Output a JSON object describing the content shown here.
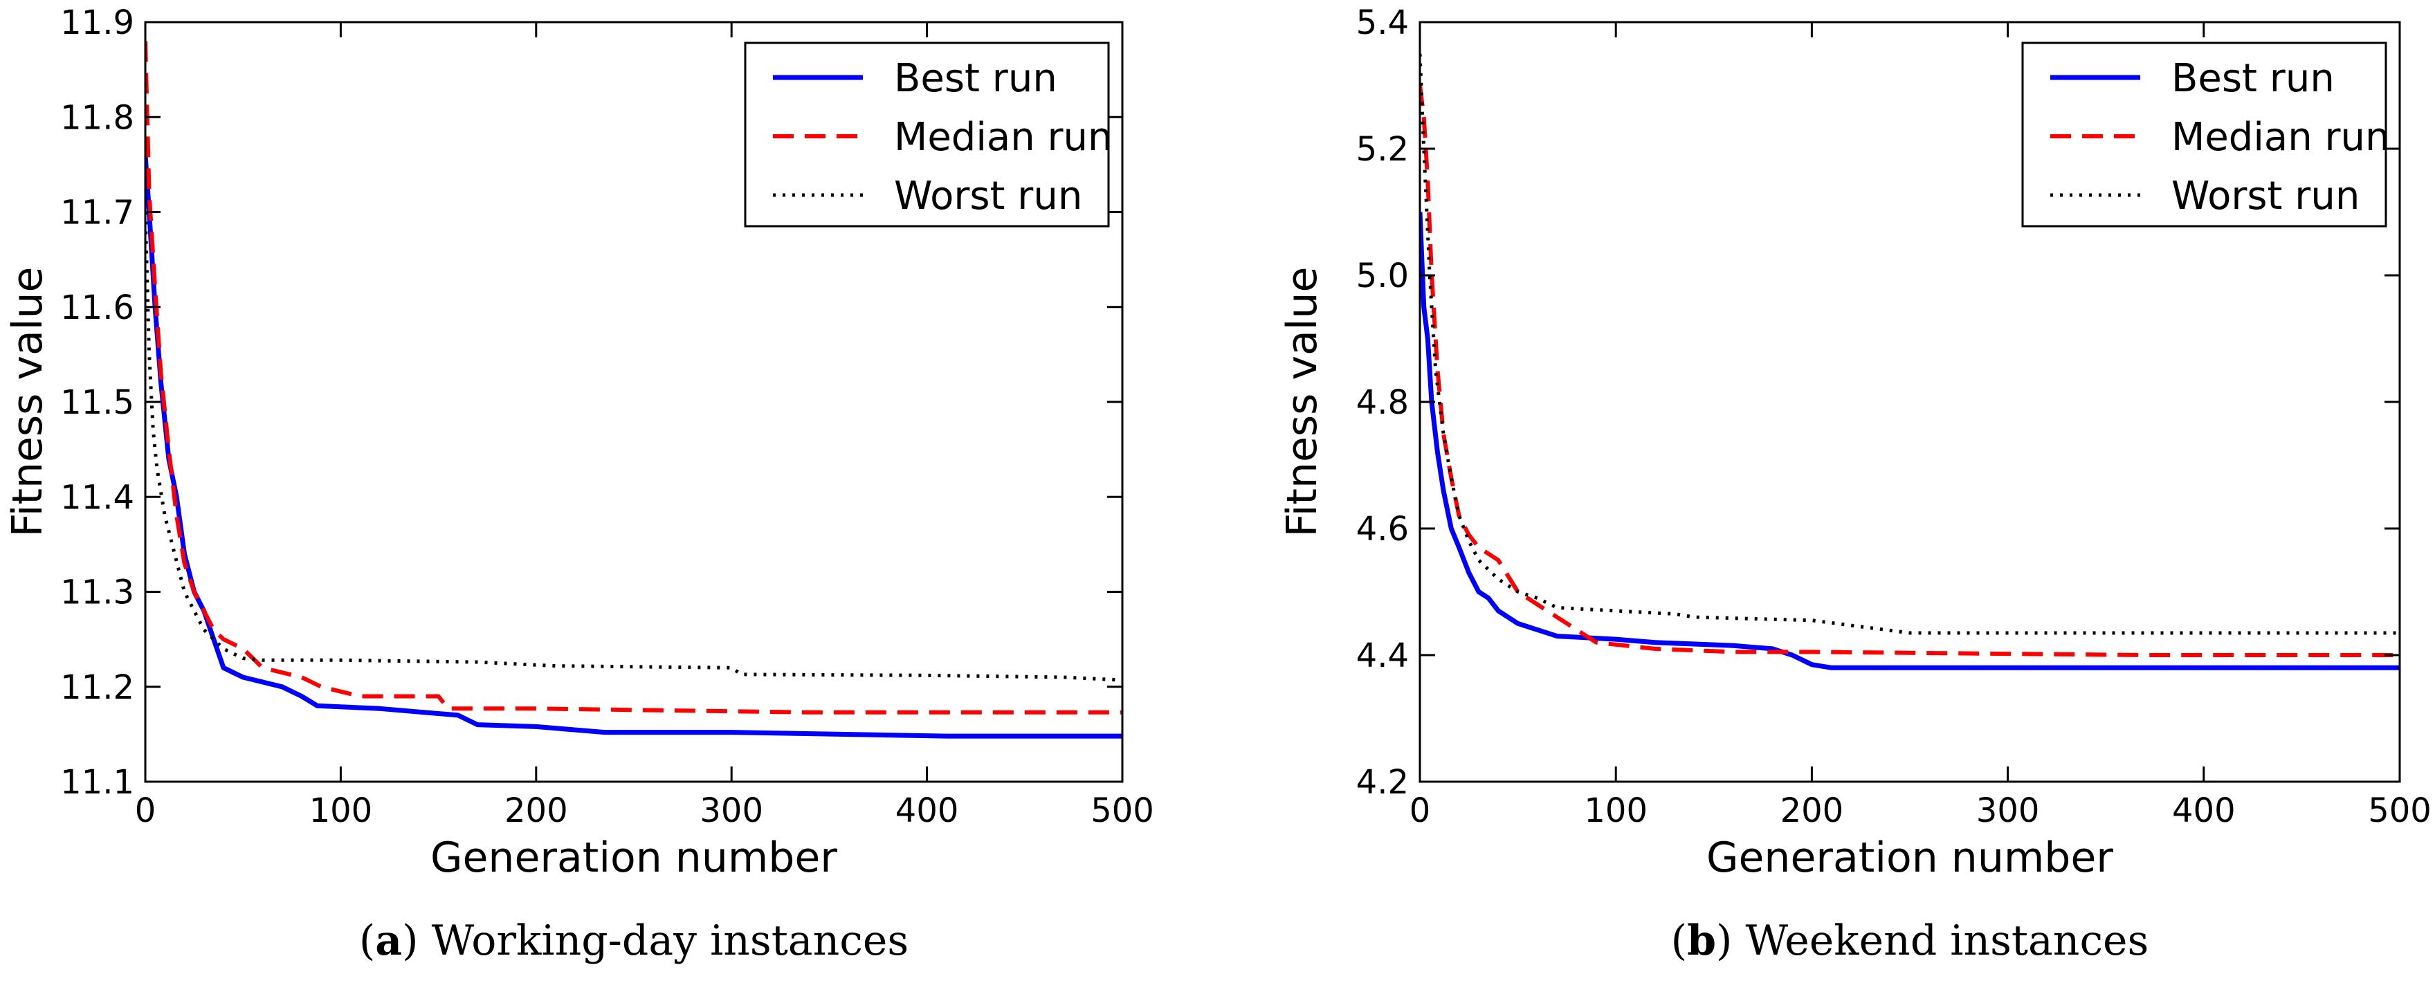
{
  "chart_data": [
    {
      "id": "a",
      "type": "line",
      "caption_letter": "a",
      "caption_text": "Working-day instances",
      "xlabel": "Generation number",
      "ylabel": "Fitness value",
      "xlim": [
        0,
        500
      ],
      "ylim": [
        11.1,
        11.9
      ],
      "xticks": [
        0,
        100,
        200,
        300,
        400,
        500
      ],
      "yticks": [
        11.1,
        11.2,
        11.3,
        11.4,
        11.5,
        11.6,
        11.7,
        11.8,
        11.9
      ],
      "xtick_labels": [
        "0",
        "100",
        "200",
        "300",
        "400",
        "500"
      ],
      "ytick_labels": [
        "11.1",
        "11.2",
        "11.3",
        "11.4",
        "11.5",
        "11.6",
        "11.7",
        "11.8",
        "11.9"
      ],
      "legend": {
        "position": "top-right"
      },
      "series": [
        {
          "name": "Best run",
          "color": "#0000ff",
          "style": "solid",
          "x": [
            0,
            2,
            5,
            8,
            12,
            16,
            20,
            25,
            30,
            35,
            40,
            45,
            50,
            60,
            70,
            80,
            88,
            120,
            160,
            170,
            200,
            235,
            300,
            410,
            500
          ],
          "y": [
            11.76,
            11.7,
            11.6,
            11.52,
            11.44,
            11.4,
            11.34,
            11.3,
            11.28,
            11.25,
            11.22,
            11.215,
            11.21,
            11.205,
            11.2,
            11.19,
            11.18,
            11.177,
            11.17,
            11.16,
            11.158,
            11.152,
            11.152,
            11.148,
            11.148
          ]
        },
        {
          "name": "Median run",
          "color": "#ff0000",
          "style": "dashed",
          "x": [
            0,
            2,
            5,
            8,
            12,
            16,
            20,
            25,
            30,
            35,
            40,
            50,
            60,
            70,
            80,
            90,
            110,
            150,
            155,
            200,
            340,
            400,
            500
          ],
          "y": [
            11.88,
            11.72,
            11.62,
            11.53,
            11.45,
            11.38,
            11.33,
            11.3,
            11.28,
            11.26,
            11.25,
            11.24,
            11.22,
            11.215,
            11.21,
            11.2,
            11.19,
            11.19,
            11.177,
            11.177,
            11.173,
            11.173,
            11.173
          ]
        },
        {
          "name": "Worst run",
          "color": "#000000",
          "style": "dotted",
          "x": [
            0,
            2,
            4,
            6,
            10,
            15,
            20,
            25,
            30,
            40,
            50,
            60,
            100,
            170,
            210,
            300,
            305,
            400,
            470,
            500
          ],
          "y": [
            11.7,
            11.55,
            11.47,
            11.43,
            11.38,
            11.34,
            11.3,
            11.28,
            11.26,
            11.24,
            11.23,
            11.228,
            11.228,
            11.226,
            11.222,
            11.22,
            11.213,
            11.212,
            11.21,
            11.207
          ]
        }
      ]
    },
    {
      "id": "b",
      "type": "line",
      "caption_letter": "b",
      "caption_text": "Weekend instances",
      "xlabel": "Generation number",
      "ylabel": "Fitness value",
      "xlim": [
        0,
        500
      ],
      "ylim": [
        4.2,
        5.4
      ],
      "xticks": [
        0,
        100,
        200,
        300,
        400,
        500
      ],
      "yticks": [
        4.2,
        4.4,
        4.6,
        4.8,
        5.0,
        5.2,
        5.4
      ],
      "xtick_labels": [
        "0",
        "100",
        "200",
        "300",
        "400",
        "500"
      ],
      "ytick_labels": [
        "4.2",
        "4.4",
        "4.6",
        "4.8",
        "5.0",
        "5.2",
        "5.4"
      ],
      "legend": {
        "position": "top-right"
      },
      "series": [
        {
          "name": "Best run",
          "color": "#0000ff",
          "style": "solid",
          "x": [
            0,
            2,
            4,
            6,
            9,
            12,
            16,
            20,
            25,
            30,
            35,
            40,
            50,
            60,
            70,
            100,
            120,
            160,
            180,
            190,
            200,
            210,
            500
          ],
          "y": [
            5.1,
            4.95,
            4.9,
            4.8,
            4.72,
            4.66,
            4.6,
            4.57,
            4.53,
            4.5,
            4.49,
            4.47,
            4.45,
            4.44,
            4.43,
            4.425,
            4.42,
            4.415,
            4.41,
            4.4,
            4.385,
            4.38,
            4.38
          ]
        },
        {
          "name": "Median run",
          "color": "#ff0000",
          "style": "dashed",
          "x": [
            0,
            2,
            4,
            6,
            9,
            12,
            16,
            20,
            25,
            30,
            40,
            50,
            60,
            70,
            80,
            90,
            120,
            160,
            200,
            370,
            500
          ],
          "y": [
            5.3,
            5.25,
            5.15,
            5.0,
            4.85,
            4.75,
            4.68,
            4.62,
            4.59,
            4.57,
            4.55,
            4.5,
            4.48,
            4.46,
            4.44,
            4.42,
            4.41,
            4.405,
            4.405,
            4.4,
            4.4
          ]
        },
        {
          "name": "Worst run",
          "color": "#000000",
          "style": "dotted",
          "x": [
            0,
            2,
            5,
            8,
            12,
            16,
            20,
            25,
            30,
            40,
            50,
            60,
            70,
            100,
            130,
            140,
            200,
            250,
            500
          ],
          "y": [
            5.35,
            5.2,
            5.0,
            4.85,
            4.75,
            4.68,
            4.62,
            4.58,
            4.55,
            4.52,
            4.5,
            4.49,
            4.475,
            4.47,
            4.465,
            4.46,
            4.455,
            4.435,
            4.435
          ]
        }
      ]
    }
  ]
}
